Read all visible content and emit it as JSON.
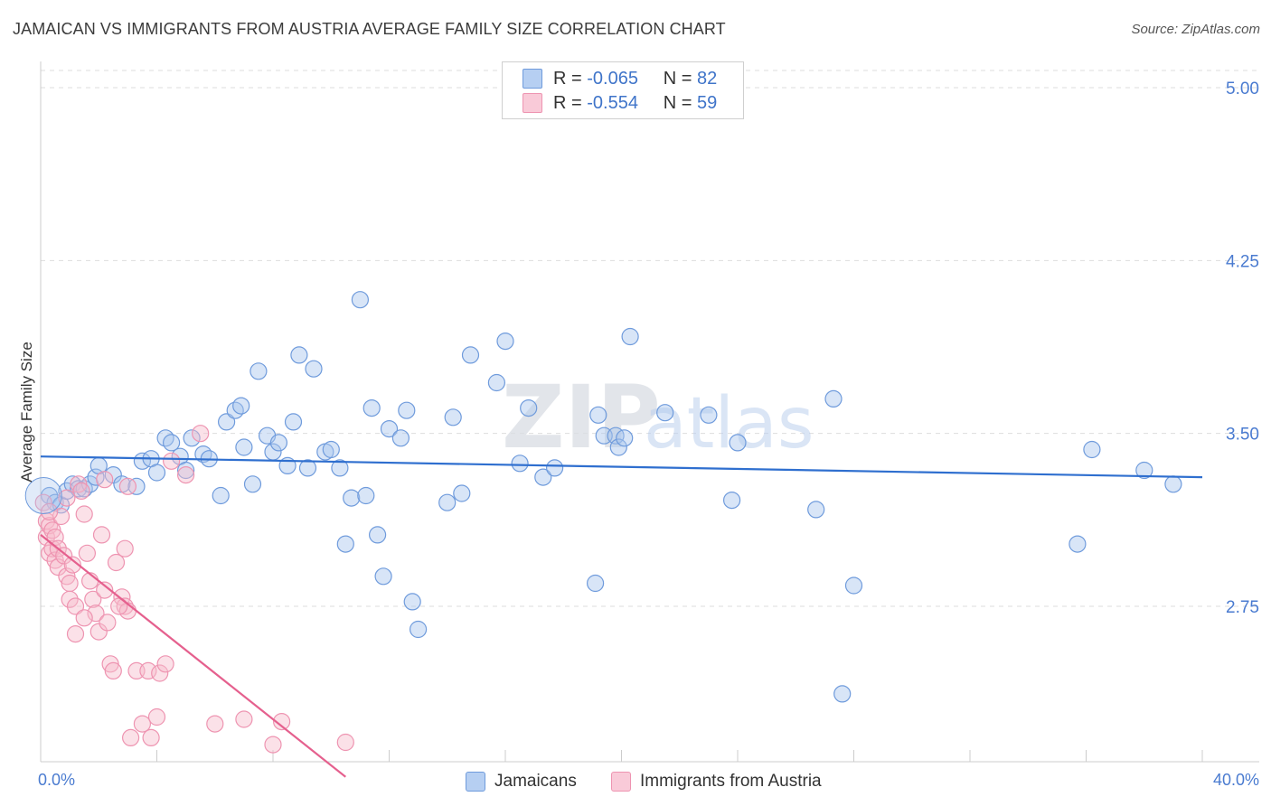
{
  "title": "JAMAICAN VS IMMIGRANTS FROM AUSTRIA AVERAGE FAMILY SIZE CORRELATION CHART",
  "source": "Source: ZipAtlas.com",
  "watermark": {
    "part1": "ZIP",
    "part2": "atlas"
  },
  "colors": {
    "blue_fill": "#a9c6ee",
    "blue_stroke": "#6f9bdc",
    "blue_line": "#2f6fcf",
    "pink_fill": "#f6bccd",
    "pink_stroke": "#ee94b1",
    "pink_line": "#e5608e",
    "axis_text": "#4a7bd0",
    "grid": "#dddddd"
  },
  "legend": {
    "rows": [
      {
        "r_label": "R =",
        "r_value": "-0.065",
        "n_label": "N =",
        "n_value": "82"
      },
      {
        "r_label": "R =",
        "r_value": "-0.554",
        "n_label": "N =",
        "n_value": "59"
      }
    ]
  },
  "bottom_legend": {
    "series1": "Jamaicans",
    "series2": "Immigrants from Austria"
  },
  "chart_data": {
    "type": "scatter",
    "title": "JAMAICAN VS IMMIGRANTS FROM AUSTRIA AVERAGE FAMILY SIZE CORRELATION CHART",
    "xlabel": "",
    "ylabel": "Average Family Size",
    "xlim": [
      0,
      40
    ],
    "ylim": [
      2.0,
      5.1
    ],
    "x_tick_labels": [
      "0.0%",
      "40.0%"
    ],
    "y_ticks": [
      2.75,
      3.5,
      4.25,
      5.0
    ],
    "y_tick_labels": [
      "2.75",
      "3.50",
      "4.25",
      "5.00"
    ],
    "grid": true,
    "legend_position": "top-center",
    "series": [
      {
        "name": "Jamaicans",
        "r": -0.065,
        "n": 82,
        "trend": {
          "x": [
            0,
            40
          ],
          "y": [
            3.4,
            3.31
          ]
        },
        "points": [
          [
            0.3,
            3.23
          ],
          [
            0.5,
            3.2
          ],
          [
            0.7,
            3.19
          ],
          [
            0.9,
            3.25
          ],
          [
            1.1,
            3.28
          ],
          [
            1.3,
            3.26
          ],
          [
            1.5,
            3.26
          ],
          [
            1.7,
            3.28
          ],
          [
            1.9,
            3.31
          ],
          [
            2.0,
            3.36
          ],
          [
            2.5,
            3.32
          ],
          [
            2.8,
            3.28
          ],
          [
            3.3,
            3.27
          ],
          [
            3.5,
            3.38
          ],
          [
            3.8,
            3.39
          ],
          [
            4.0,
            3.33
          ],
          [
            4.3,
            3.48
          ],
          [
            4.5,
            3.46
          ],
          [
            4.8,
            3.4
          ],
          [
            5.0,
            3.34
          ],
          [
            5.2,
            3.48
          ],
          [
            5.6,
            3.41
          ],
          [
            5.8,
            3.39
          ],
          [
            6.2,
            3.23
          ],
          [
            6.4,
            3.55
          ],
          [
            6.7,
            3.6
          ],
          [
            6.9,
            3.62
          ],
          [
            7.0,
            3.44
          ],
          [
            7.3,
            3.28
          ],
          [
            7.5,
            3.77
          ],
          [
            7.8,
            3.49
          ],
          [
            8.0,
            3.42
          ],
          [
            8.2,
            3.46
          ],
          [
            8.5,
            3.36
          ],
          [
            8.7,
            3.55
          ],
          [
            8.9,
            3.84
          ],
          [
            9.2,
            3.35
          ],
          [
            9.4,
            3.78
          ],
          [
            9.8,
            3.42
          ],
          [
            10.0,
            3.43
          ],
          [
            10.3,
            3.35
          ],
          [
            10.5,
            3.02
          ],
          [
            10.7,
            3.22
          ],
          [
            11.0,
            4.08
          ],
          [
            11.2,
            3.23
          ],
          [
            11.4,
            3.61
          ],
          [
            11.6,
            3.06
          ],
          [
            11.8,
            2.88
          ],
          [
            12.0,
            3.52
          ],
          [
            12.4,
            3.48
          ],
          [
            12.6,
            3.6
          ],
          [
            12.8,
            2.77
          ],
          [
            13.0,
            2.65
          ],
          [
            14.0,
            3.2
          ],
          [
            14.2,
            3.57
          ],
          [
            14.5,
            3.24
          ],
          [
            14.8,
            3.84
          ],
          [
            15.7,
            3.72
          ],
          [
            16.0,
            3.9
          ],
          [
            16.5,
            3.37
          ],
          [
            16.8,
            3.61
          ],
          [
            17.3,
            3.31
          ],
          [
            17.7,
            3.35
          ],
          [
            19.1,
            2.85
          ],
          [
            19.2,
            3.58
          ],
          [
            19.4,
            3.49
          ],
          [
            19.8,
            3.49
          ],
          [
            19.9,
            3.44
          ],
          [
            20.1,
            3.48
          ],
          [
            20.3,
            3.92
          ],
          [
            21.5,
            3.59
          ],
          [
            23.0,
            3.58
          ],
          [
            23.8,
            3.21
          ],
          [
            24.0,
            3.46
          ],
          [
            26.7,
            3.17
          ],
          [
            27.3,
            3.65
          ],
          [
            27.6,
            2.37
          ],
          [
            28.0,
            2.84
          ],
          [
            35.7,
            3.02
          ],
          [
            36.2,
            3.43
          ],
          [
            38.0,
            3.34
          ],
          [
            39.0,
            3.28
          ]
        ]
      },
      {
        "name": "Immigrants from Austria",
        "r": -0.554,
        "n": 59,
        "trend": {
          "x": [
            0,
            10.5
          ],
          "y": [
            3.06,
            2.01
          ]
        },
        "points": [
          [
            0.1,
            3.2
          ],
          [
            0.2,
            3.12
          ],
          [
            0.2,
            3.05
          ],
          [
            0.3,
            3.1
          ],
          [
            0.3,
            2.98
          ],
          [
            0.4,
            3.08
          ],
          [
            0.4,
            3.0
          ],
          [
            0.5,
            3.05
          ],
          [
            0.5,
            2.95
          ],
          [
            0.6,
            3.0
          ],
          [
            0.6,
            2.92
          ],
          [
            0.7,
            3.14
          ],
          [
            0.8,
            2.97
          ],
          [
            0.9,
            2.88
          ],
          [
            1.0,
            2.85
          ],
          [
            1.0,
            2.78
          ],
          [
            1.1,
            2.93
          ],
          [
            1.2,
            2.75
          ],
          [
            1.2,
            2.63
          ],
          [
            1.3,
            3.28
          ],
          [
            1.4,
            3.25
          ],
          [
            1.5,
            3.15
          ],
          [
            1.6,
            2.98
          ],
          [
            1.7,
            2.86
          ],
          [
            1.8,
            2.78
          ],
          [
            1.9,
            2.72
          ],
          [
            2.0,
            2.64
          ],
          [
            2.1,
            3.06
          ],
          [
            2.2,
            2.82
          ],
          [
            2.3,
            2.68
          ],
          [
            2.4,
            2.5
          ],
          [
            2.5,
            2.47
          ],
          [
            2.6,
            2.94
          ],
          [
            2.8,
            2.79
          ],
          [
            2.9,
            2.75
          ],
          [
            2.9,
            3.0
          ],
          [
            3.0,
            2.73
          ],
          [
            3.1,
            2.18
          ],
          [
            3.3,
            2.47
          ],
          [
            3.5,
            2.24
          ],
          [
            3.7,
            2.47
          ],
          [
            3.8,
            2.18
          ],
          [
            4.0,
            2.27
          ],
          [
            4.1,
            2.46
          ],
          [
            4.3,
            2.5
          ],
          [
            4.5,
            3.38
          ],
          [
            5.0,
            3.32
          ],
          [
            5.5,
            3.5
          ],
          [
            6.0,
            2.24
          ],
          [
            7.0,
            2.26
          ],
          [
            8.0,
            2.15
          ],
          [
            8.3,
            2.25
          ],
          [
            10.5,
            2.16
          ],
          [
            0.3,
            3.16
          ],
          [
            0.9,
            3.22
          ],
          [
            1.5,
            2.7
          ],
          [
            2.2,
            3.3
          ],
          [
            2.7,
            2.75
          ],
          [
            3.0,
            3.27
          ]
        ]
      }
    ]
  }
}
